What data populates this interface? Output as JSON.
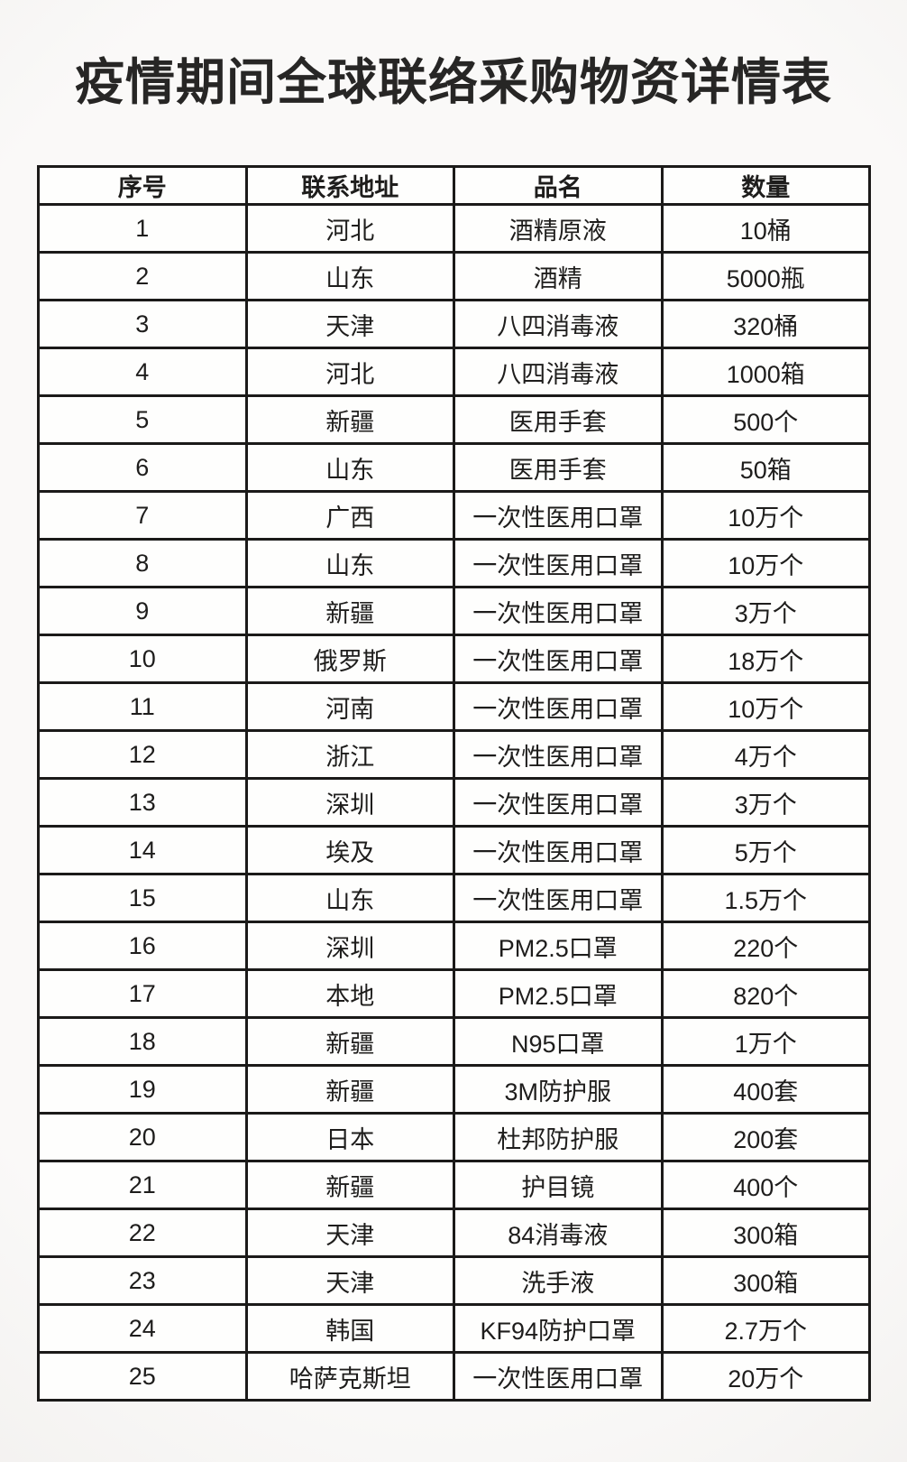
{
  "page": {
    "title": "疫情期间全球联络采购物资详情表"
  },
  "table": {
    "columns": [
      "序号",
      "联系地址",
      "品名",
      "数量"
    ],
    "rows": [
      {
        "no": "1",
        "address": "河北",
        "product": "酒精原液",
        "quantity": "10桶"
      },
      {
        "no": "2",
        "address": "山东",
        "product": "酒精",
        "quantity": "5000瓶"
      },
      {
        "no": "3",
        "address": "天津",
        "product": "八四消毒液",
        "quantity": "320桶"
      },
      {
        "no": "4",
        "address": "河北",
        "product": "八四消毒液",
        "quantity": "1000箱"
      },
      {
        "no": "5",
        "address": "新疆",
        "product": "医用手套",
        "quantity": "500个"
      },
      {
        "no": "6",
        "address": "山东",
        "product": "医用手套",
        "quantity": "50箱"
      },
      {
        "no": "7",
        "address": "广西",
        "product": "一次性医用口罩",
        "quantity": "10万个"
      },
      {
        "no": "8",
        "address": "山东",
        "product": "一次性医用口罩",
        "quantity": "10万个"
      },
      {
        "no": "9",
        "address": "新疆",
        "product": "一次性医用口罩",
        "quantity": "3万个"
      },
      {
        "no": "10",
        "address": "俄罗斯",
        "product": "一次性医用口罩",
        "quantity": "18万个"
      },
      {
        "no": "11",
        "address": "河南",
        "product": "一次性医用口罩",
        "quantity": "10万个"
      },
      {
        "no": "12",
        "address": "浙江",
        "product": "一次性医用口罩",
        "quantity": "4万个"
      },
      {
        "no": "13",
        "address": "深圳",
        "product": "一次性医用口罩",
        "quantity": "3万个"
      },
      {
        "no": "14",
        "address": "埃及",
        "product": "一次性医用口罩",
        "quantity": "5万个"
      },
      {
        "no": "15",
        "address": "山东",
        "product": "一次性医用口罩",
        "quantity": "1.5万个"
      },
      {
        "no": "16",
        "address": "深圳",
        "product": "PM2.5口罩",
        "quantity": "220个"
      },
      {
        "no": "17",
        "address": "本地",
        "product": "PM2.5口罩",
        "quantity": "820个"
      },
      {
        "no": "18",
        "address": "新疆",
        "product": "N95口罩",
        "quantity": "1万个"
      },
      {
        "no": "19",
        "address": "新疆",
        "product": "3M防护服",
        "quantity": "400套"
      },
      {
        "no": "20",
        "address": "日本",
        "product": "杜邦防护服",
        "quantity": "200套"
      },
      {
        "no": "21",
        "address": "新疆",
        "product": "护目镜",
        "quantity": "400个"
      },
      {
        "no": "22",
        "address": "天津",
        "product": "84消毒液",
        "quantity": "300箱"
      },
      {
        "no": "23",
        "address": "天津",
        "product": "洗手液",
        "quantity": "300箱"
      },
      {
        "no": "24",
        "address": "韩国",
        "product": "KF94防护口罩",
        "quantity": "2.7万个"
      },
      {
        "no": "25",
        "address": "哈萨克斯坦",
        "product": "一次性医用口罩",
        "quantity": "20万个"
      }
    ]
  }
}
